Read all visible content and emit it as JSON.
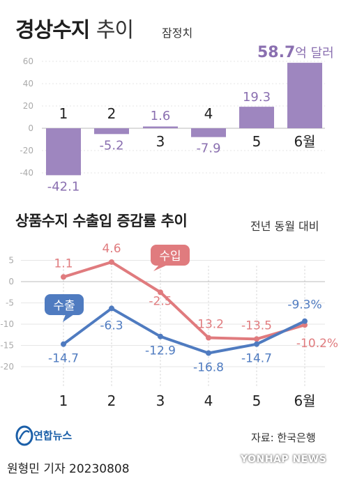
{
  "header": {
    "title_bold": "경상수지",
    "title_light": "추이",
    "note": "잠정치"
  },
  "section2": {
    "title": "상품수지 수출입 증감률 추이",
    "note": "전년 동월 대비"
  },
  "footer": {
    "logo_text": "연합뉴스",
    "source": "자료: 한국은행",
    "byline": "원형민 기자  20230808",
    "watermark": "YONHAP NEWS"
  },
  "colors": {
    "bar": "#9e86bf",
    "bar_label": "#8a6fb0",
    "import": "#e07b7e",
    "export": "#4f7bc0",
    "axis_text": "#aaaaaa"
  },
  "chart_data": [
    {
      "type": "bar",
      "title": "경상수지 추이",
      "categories": [
        "1",
        "2",
        "3",
        "4",
        "5",
        "6월"
      ],
      "values": [
        -42.1,
        -5.2,
        1.6,
        -7.9,
        19.3,
        58.7
      ],
      "value_labels": [
        "-42.1",
        "-5.2",
        "1.6",
        "-7.9",
        "19.3",
        "58.7"
      ],
      "unit_label": "억 달러",
      "yticks": [
        "60",
        "40",
        "20",
        "0",
        "-20",
        "-40"
      ],
      "ylim": [
        -48,
        66
      ]
    },
    {
      "type": "line",
      "title": "상품수지 수출입 증감률 추이",
      "categories": [
        "1",
        "2",
        "3",
        "4",
        "5",
        "6월"
      ],
      "yticks": [
        "5",
        "0",
        "-5",
        "-10",
        "-15",
        "-20"
      ],
      "ylim": [
        -20,
        5
      ],
      "series": [
        {
          "name": "수입",
          "values": [
            1.1,
            4.6,
            -2.5,
            -13.2,
            -13.5,
            -10.2
          ],
          "labels": [
            "1.1",
            "4.6",
            "-2.5",
            "-13.2",
            "-13.5",
            "-10.2%"
          ]
        },
        {
          "name": "수출",
          "values": [
            -14.7,
            -6.3,
            -12.9,
            -16.8,
            -14.7,
            -9.3
          ],
          "labels": [
            "-14.7",
            "-6.3",
            "-12.9",
            "-16.8",
            "-14.7",
            "-9.3%"
          ]
        }
      ]
    }
  ]
}
